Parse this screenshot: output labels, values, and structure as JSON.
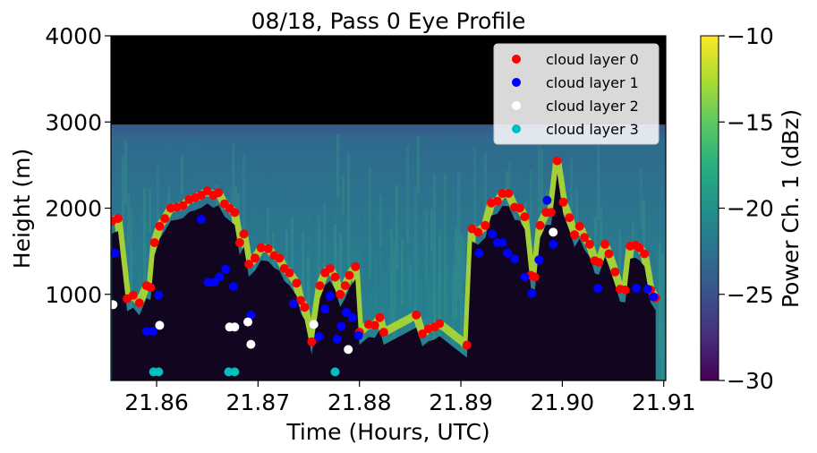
{
  "chart_data": {
    "type": "heatmap",
    "title": "08/18, Pass 0 Eye Profile",
    "xlabel": "Time (Hours, UTC)",
    "ylabel": "Height (m)",
    "xlim": [
      21.8555,
      21.9102
    ],
    "ylim": [
      0,
      4000
    ],
    "x_ticks": [
      21.86,
      21.87,
      21.88,
      21.89,
      21.9,
      21.91
    ],
    "x_tick_labels": [
      "21.86",
      "21.87",
      "21.88",
      "21.89",
      "21.90",
      "21.91"
    ],
    "y_ticks": [
      1000,
      2000,
      3000,
      4000
    ],
    "y_tick_labels": [
      "1000",
      "2000",
      "3000",
      "4000"
    ],
    "colorbar": {
      "label": "Power Ch. 1 (dBz)",
      "range": [
        -30,
        -10
      ],
      "ticks": [
        -30,
        -25,
        -20,
        -15,
        -10
      ],
      "tick_labels": [
        "−30",
        "−25",
        "−20",
        "−15",
        "−10"
      ],
      "colormap": "viridis"
    },
    "background": {
      "no_data_above_m": 2970,
      "clear_air_dBz": -22.5,
      "note_values": "approximate power field"
    },
    "legend": {
      "position": "top-right",
      "entries": [
        {
          "label": "cloud layer 0",
          "color": "#ff0000"
        },
        {
          "label": "cloud layer 1",
          "color": "#0000ff"
        },
        {
          "label": "cloud layer 2",
          "color": "#ffffff"
        },
        {
          "label": "cloud layer 3",
          "color": "#00bfbf"
        }
      ]
    },
    "series": [
      {
        "name": "cloud layer 0",
        "color": "#ff0000",
        "points": [
          [
            21.8556,
            1850
          ],
          [
            21.8562,
            1880
          ],
          [
            21.8571,
            950
          ],
          [
            21.8577,
            990
          ],
          [
            21.8583,
            900
          ],
          [
            21.859,
            1100
          ],
          [
            21.8594,
            1080
          ],
          [
            21.8598,
            1600
          ],
          [
            21.8603,
            1790
          ],
          [
            21.8608,
            1880
          ],
          [
            21.8614,
            2000
          ],
          [
            21.862,
            2010
          ],
          [
            21.8626,
            2030
          ],
          [
            21.8632,
            2100
          ],
          [
            21.8638,
            2120
          ],
          [
            21.8644,
            2150
          ],
          [
            21.865,
            2200
          ],
          [
            21.8656,
            2150
          ],
          [
            21.8661,
            2180
          ],
          [
            21.8667,
            2050
          ],
          [
            21.8672,
            2000
          ],
          [
            21.8677,
            1950
          ],
          [
            21.8682,
            1600
          ],
          [
            21.8686,
            1700
          ],
          [
            21.8691,
            1350
          ],
          [
            21.8697,
            1420
          ],
          [
            21.8703,
            1540
          ],
          [
            21.871,
            1530
          ],
          [
            21.8716,
            1450
          ],
          [
            21.8721,
            1420
          ],
          [
            21.8726,
            1300
          ],
          [
            21.8731,
            1250
          ],
          [
            21.8738,
            1130
          ],
          [
            21.8742,
            930
          ],
          [
            21.8746,
            850
          ],
          [
            21.8753,
            450
          ],
          [
            21.8761,
            1100
          ],
          [
            21.8766,
            1250
          ],
          [
            21.8771,
            1300
          ],
          [
            21.8776,
            1200
          ],
          [
            21.8781,
            1000
          ],
          [
            21.8786,
            1100
          ],
          [
            21.879,
            1220
          ],
          [
            21.8796,
            1320
          ],
          [
            21.88,
            560
          ],
          [
            21.8809,
            650
          ],
          [
            21.8815,
            640
          ],
          [
            21.882,
            730
          ],
          [
            21.8824,
            560
          ],
          [
            21.8856,
            760
          ],
          [
            21.8862,
            540
          ],
          [
            21.8868,
            600
          ],
          [
            21.8874,
            620
          ],
          [
            21.8879,
            660
          ],
          [
            21.8906,
            410
          ],
          [
            21.8911,
            1760
          ],
          [
            21.8917,
            1720
          ],
          [
            21.8924,
            1800
          ],
          [
            21.893,
            2060
          ],
          [
            21.8936,
            2080
          ],
          [
            21.8941,
            2170
          ],
          [
            21.8947,
            2170
          ],
          [
            21.8953,
            2010
          ],
          [
            21.8958,
            2000
          ],
          [
            21.8963,
            1900
          ],
          [
            21.8969,
            1220
          ],
          [
            21.8973,
            1200
          ],
          [
            21.8978,
            1800
          ],
          [
            21.8984,
            1950
          ],
          [
            21.8989,
            1950
          ],
          [
            21.8995,
            2550
          ],
          [
            21.9001,
            2070
          ],
          [
            21.9007,
            1890
          ],
          [
            21.9012,
            1690
          ],
          [
            21.9017,
            1790
          ],
          [
            21.9022,
            1660
          ],
          [
            21.9027,
            1580
          ],
          [
            21.9032,
            1390
          ],
          [
            21.9036,
            1370
          ],
          [
            21.9042,
            1580
          ],
          [
            21.9046,
            1470
          ],
          [
            21.9052,
            1260
          ],
          [
            21.9057,
            1060
          ],
          [
            21.9062,
            1050
          ],
          [
            21.9067,
            1560
          ],
          [
            21.9072,
            1570
          ],
          [
            21.9076,
            1540
          ],
          [
            21.9081,
            1470
          ],
          [
            21.9087,
            1050
          ],
          [
            21.9092,
            960
          ]
        ]
      },
      {
        "name": "cloud layer 1",
        "color": "#0000ff",
        "points": [
          [
            21.8559,
            1480
          ],
          [
            21.859,
            570
          ],
          [
            21.8596,
            570
          ],
          [
            21.8602,
            990
          ],
          [
            21.8644,
            1870
          ],
          [
            21.8651,
            1140
          ],
          [
            21.8657,
            1140
          ],
          [
            21.8662,
            1200
          ],
          [
            21.8668,
            1290
          ],
          [
            21.8676,
            1090
          ],
          [
            21.8693,
            760
          ],
          [
            21.8735,
            890
          ],
          [
            21.876,
            510
          ],
          [
            21.8766,
            830
          ],
          [
            21.8771,
            980
          ],
          [
            21.8778,
            480
          ],
          [
            21.8782,
            630
          ],
          [
            21.8787,
            790
          ],
          [
            21.8793,
            730
          ],
          [
            21.8799,
            520
          ],
          [
            21.8918,
            1480
          ],
          [
            21.8931,
            1700
          ],
          [
            21.8936,
            1600
          ],
          [
            21.8941,
            1600
          ],
          [
            21.8946,
            1480
          ],
          [
            21.8953,
            1410
          ],
          [
            21.8963,
            1200
          ],
          [
            21.897,
            1010
          ],
          [
            21.8977,
            1400
          ],
          [
            21.8985,
            2090
          ],
          [
            21.8991,
            1580
          ],
          [
            21.9035,
            1070
          ],
          [
            21.9073,
            1070
          ],
          [
            21.9084,
            1060
          ],
          [
            21.909,
            970
          ]
        ]
      },
      {
        "name": "cloud layer 2",
        "color": "#ffffff",
        "points": [
          [
            21.8557,
            880
          ],
          [
            21.8603,
            640
          ],
          [
            21.8672,
            620
          ],
          [
            21.8677,
            620
          ],
          [
            21.869,
            680
          ],
          [
            21.8693,
            420
          ],
          [
            21.8755,
            650
          ],
          [
            21.8789,
            360
          ],
          [
            21.8991,
            1720
          ]
        ]
      },
      {
        "name": "cloud layer 3",
        "color": "#00bfbf",
        "points": [
          [
            21.8597,
            100
          ],
          [
            21.8602,
            100
          ],
          [
            21.8671,
            100
          ],
          [
            21.8677,
            100
          ],
          [
            21.8776,
            100
          ]
        ]
      }
    ]
  }
}
